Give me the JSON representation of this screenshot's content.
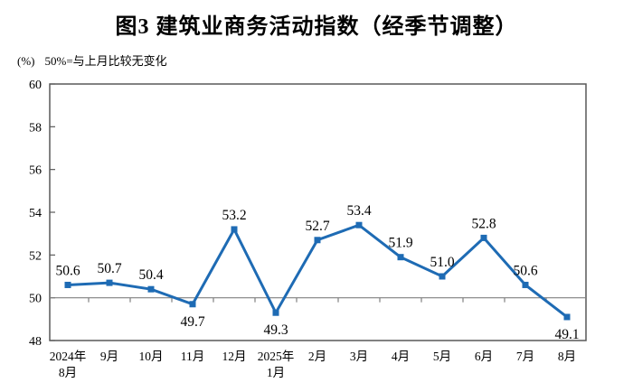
{
  "page": {
    "title": "图3 建筑业商务活动指数（经季节调整）",
    "unit_label": "(%)",
    "note": "50%=与上月比较无变化"
  },
  "chart_data": {
    "type": "line",
    "title": "图3 建筑业商务活动指数（经季节调整）",
    "unit_label": "(%)",
    "annotation": "50%=与上月比较无变化",
    "categories": [
      [
        "2024年",
        "8月"
      ],
      [
        "9月"
      ],
      [
        "10月"
      ],
      [
        "11月"
      ],
      [
        "12月"
      ],
      [
        "2025年",
        "1月"
      ],
      [
        "2月"
      ],
      [
        "3月"
      ],
      [
        "4月"
      ],
      [
        "5月"
      ],
      [
        "6月"
      ],
      [
        "7月"
      ],
      [
        "8月"
      ]
    ],
    "values": [
      50.6,
      50.7,
      50.4,
      49.7,
      53.2,
      49.3,
      52.7,
      53.4,
      51.9,
      51.0,
      52.8,
      50.6,
      49.1
    ],
    "data_labels": [
      "50.6",
      "50.7",
      "50.4",
      "49.7",
      "53.2",
      "49.3",
      "52.7",
      "53.4",
      "51.9",
      "51.0",
      "52.8",
      "50.6",
      "49.1"
    ],
    "xlabel": "",
    "ylabel": "(%)",
    "ylim": [
      48,
      60
    ],
    "yticks": [
      48,
      50,
      52,
      54,
      56,
      58,
      60
    ],
    "reference_line": 50,
    "grid": false,
    "legend_position": "none",
    "marker": "square",
    "colors": {
      "line": "#1E6BB4",
      "marker": "#1E6BB4",
      "frame": "#595959",
      "reference_line": "#808080",
      "text": "#000000"
    }
  }
}
